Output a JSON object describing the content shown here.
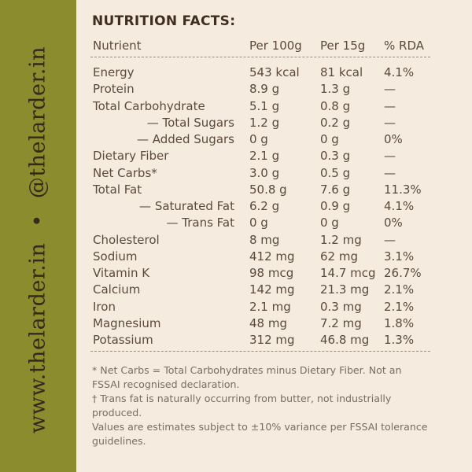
{
  "sidebar": {
    "website": "www.thelarder.in",
    "separator": "•",
    "handle": "@thelarder.in"
  },
  "title": "NUTRITION FACTS:",
  "table": {
    "header": [
      "Nutrient",
      "Per 100g",
      "Per 15g",
      "% RDA"
    ],
    "rows": [
      [
        "Energy",
        "543 kcal",
        "81 kcal",
        "4.1%"
      ],
      [
        "Protein",
        "8.9 g",
        "1.3 g",
        "—"
      ],
      [
        "Total Carbohydrate",
        "5.1 g",
        "0.8 g",
        "—"
      ],
      [
        "— Total Sugars",
        "1.2 g",
        "0.2 g",
        "—"
      ],
      [
        "— Added Sugars",
        "0 g",
        "0 g",
        "0%"
      ],
      [
        "Dietary Fiber",
        "2.1 g",
        "0.3 g",
        "—"
      ],
      [
        "Net Carbs*",
        "3.0 g",
        "0.5 g",
        "—"
      ],
      [
        "Total Fat",
        "50.8 g",
        "7.6 g",
        "11.3%"
      ],
      [
        "— Saturated Fat",
        "6.2 g",
        "0.9 g",
        "4.1%"
      ],
      [
        "— Trans Fat",
        "0 g",
        "0 g",
        "0%"
      ],
      [
        "Cholesterol",
        "8 mg",
        "1.2 mg",
        "—"
      ],
      [
        "Sodium",
        "412 mg",
        "62 mg",
        "3.1%"
      ],
      [
        "Vitamin K",
        "98 mcg",
        "14.7 mcg",
        "26.7%"
      ],
      [
        "Calcium",
        "142 mg",
        "21.3 mg",
        "2.1%"
      ],
      [
        "Iron",
        "2.1 mg",
        "0.3 mg",
        "2.1%"
      ],
      [
        "Magnesium",
        "48 mg",
        "7.2 mg",
        "1.8%"
      ],
      [
        "Potassium",
        "312 mg",
        "46.8 mg",
        "1.3%"
      ]
    ]
  },
  "footnotes": [
    "* Net Carbs = Total Carbohydrates minus Dietary Fiber. Not an FSSAI recognised declaration.",
    "† Trans fat is naturally occurring from butter, not industrially produced.",
    "Values are estimates subject to ±10% variance per FSSAI tolerance guidelines."
  ]
}
